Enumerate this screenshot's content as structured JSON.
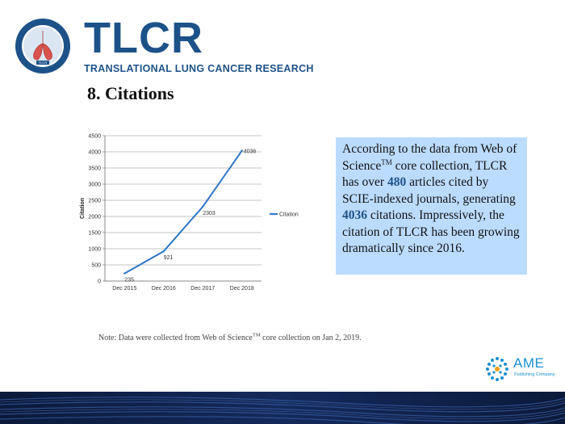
{
  "header": {
    "logo_text": "TLCR",
    "logo_subtitle": "TRANSLATIONAL LUNG CANCER RESEARCH",
    "seal_inner_text": "TLCR"
  },
  "section_title": "8. Citations",
  "info_box": {
    "line1": "According to the data from Web of Science",
    "tm": "TM",
    "line2": " core collection, TLCR has over ",
    "articles": "480",
    "line3": " articles cited by SCIE-indexed journals, generating ",
    "citations": "4036",
    "line4": " citations. Impressively, the citation of TLCR has been growing dramatically since 2016."
  },
  "note": {
    "prefix": "Note: Data were collected from Web of Science",
    "tm": "TM",
    "suffix": " core collection on Jan 2, 2019."
  },
  "publisher": {
    "name": "AME",
    "subtitle": "Publishing Company"
  },
  "colors": {
    "brand_blue": "#1d5289",
    "line_blue": "#2f77c9",
    "info_box_bg": "#bcdcff",
    "ame_blue": "#1b8fd1"
  },
  "chart_data": {
    "type": "line",
    "categories": [
      "Dec 2015",
      "Dec 2016",
      "Dec 2017",
      "Dec 2018"
    ],
    "series": [
      {
        "name": "Citation",
        "values": [
          235,
          921,
          2303,
          4036
        ]
      }
    ],
    "data_labels": [
      "235",
      "921",
      "2303",
      "4036"
    ],
    "ylabel": "Citation",
    "xlabel": "",
    "ylim": [
      0,
      4500
    ],
    "yticks": [
      0,
      500,
      1000,
      1500,
      2000,
      2500,
      3000,
      3500,
      4000,
      4500
    ],
    "grid": true,
    "legend": "right"
  }
}
